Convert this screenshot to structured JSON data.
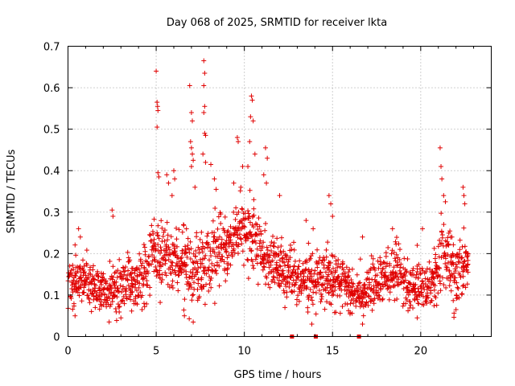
{
  "chart_data": {
    "type": "scatter",
    "title": "Day 068 of 2025, SRMTID for receiver lkta",
    "xlabel": "GPS time / hours",
    "ylabel": "SRMTID / TECUs",
    "xlim": [
      0,
      24
    ],
    "ylim": [
      0,
      0.7
    ],
    "x_ticks": [
      0,
      5,
      10,
      15,
      20
    ],
    "x_tick_labels": [
      "0",
      "5",
      "10",
      "15",
      "20"
    ],
    "y_ticks": [
      0,
      0.1,
      0.2,
      0.3,
      0.4,
      0.5,
      0.6,
      0.7
    ],
    "y_tick_labels": [
      "0",
      "0.1",
      "0.2",
      "0.3",
      "0.4",
      "0.5",
      "0.6",
      "0.7"
    ],
    "grid": true,
    "marker": "+",
    "color": "#e00000",
    "baseline_sample_hour_step": 0.05,
    "baseline_profile": [
      {
        "x": 0.0,
        "y": 0.13,
        "spread": 0.05
      },
      {
        "x": 1.0,
        "y": 0.13,
        "spread": 0.05
      },
      {
        "x": 2.0,
        "y": 0.11,
        "spread": 0.04
      },
      {
        "x": 3.0,
        "y": 0.12,
        "spread": 0.05
      },
      {
        "x": 4.0,
        "y": 0.14,
        "spread": 0.06
      },
      {
        "x": 5.0,
        "y": 0.2,
        "spread": 0.08
      },
      {
        "x": 6.0,
        "y": 0.17,
        "spread": 0.07
      },
      {
        "x": 7.0,
        "y": 0.17,
        "spread": 0.08
      },
      {
        "x": 8.0,
        "y": 0.18,
        "spread": 0.08
      },
      {
        "x": 9.0,
        "y": 0.22,
        "spread": 0.06
      },
      {
        "x": 9.7,
        "y": 0.26,
        "spread": 0.06
      },
      {
        "x": 10.5,
        "y": 0.24,
        "spread": 0.07
      },
      {
        "x": 11.5,
        "y": 0.18,
        "spread": 0.06
      },
      {
        "x": 12.5,
        "y": 0.15,
        "spread": 0.06
      },
      {
        "x": 13.5,
        "y": 0.13,
        "spread": 0.05
      },
      {
        "x": 14.5,
        "y": 0.15,
        "spread": 0.06
      },
      {
        "x": 15.5,
        "y": 0.13,
        "spread": 0.05
      },
      {
        "x": 16.5,
        "y": 0.1,
        "spread": 0.04
      },
      {
        "x": 17.5,
        "y": 0.13,
        "spread": 0.05
      },
      {
        "x": 18.5,
        "y": 0.15,
        "spread": 0.06
      },
      {
        "x": 19.5,
        "y": 0.11,
        "spread": 0.05
      },
      {
        "x": 20.5,
        "y": 0.12,
        "spread": 0.05
      },
      {
        "x": 21.2,
        "y": 0.2,
        "spread": 0.07
      },
      {
        "x": 22.0,
        "y": 0.15,
        "spread": 0.07
      },
      {
        "x": 22.7,
        "y": 0.19,
        "spread": 0.05
      }
    ],
    "highlight_points": [
      {
        "x": 5.0,
        "y": 0.64
      },
      {
        "x": 5.05,
        "y": 0.565
      },
      {
        "x": 5.08,
        "y": 0.555
      },
      {
        "x": 5.1,
        "y": 0.545
      },
      {
        "x": 5.05,
        "y": 0.505
      },
      {
        "x": 5.1,
        "y": 0.395
      },
      {
        "x": 5.15,
        "y": 0.385
      },
      {
        "x": 5.6,
        "y": 0.39
      },
      {
        "x": 5.7,
        "y": 0.37
      },
      {
        "x": 5.9,
        "y": 0.34
      },
      {
        "x": 6.9,
        "y": 0.605
      },
      {
        "x": 7.0,
        "y": 0.54
      },
      {
        "x": 7.05,
        "y": 0.52
      },
      {
        "x": 6.95,
        "y": 0.47
      },
      {
        "x": 7.0,
        "y": 0.455
      },
      {
        "x": 7.05,
        "y": 0.44
      },
      {
        "x": 7.1,
        "y": 0.425
      },
      {
        "x": 7.0,
        "y": 0.41
      },
      {
        "x": 7.2,
        "y": 0.36
      },
      {
        "x": 7.7,
        "y": 0.665
      },
      {
        "x": 7.75,
        "y": 0.635
      },
      {
        "x": 7.7,
        "y": 0.605
      },
      {
        "x": 7.75,
        "y": 0.555
      },
      {
        "x": 7.7,
        "y": 0.54
      },
      {
        "x": 7.75,
        "y": 0.49
      },
      {
        "x": 7.8,
        "y": 0.485
      },
      {
        "x": 7.65,
        "y": 0.44
      },
      {
        "x": 7.8,
        "y": 0.42
      },
      {
        "x": 8.1,
        "y": 0.415
      },
      {
        "x": 8.4,
        "y": 0.355
      },
      {
        "x": 9.6,
        "y": 0.48
      },
      {
        "x": 9.65,
        "y": 0.47
      },
      {
        "x": 9.4,
        "y": 0.37
      },
      {
        "x": 9.9,
        "y": 0.41
      },
      {
        "x": 10.4,
        "y": 0.58
      },
      {
        "x": 10.45,
        "y": 0.57
      },
      {
        "x": 10.35,
        "y": 0.53
      },
      {
        "x": 10.5,
        "y": 0.52
      },
      {
        "x": 10.3,
        "y": 0.47
      },
      {
        "x": 10.6,
        "y": 0.44
      },
      {
        "x": 10.2,
        "y": 0.41
      },
      {
        "x": 11.2,
        "y": 0.455
      },
      {
        "x": 11.3,
        "y": 0.43
      },
      {
        "x": 11.1,
        "y": 0.39
      },
      {
        "x": 11.25,
        "y": 0.37
      },
      {
        "x": 12.0,
        "y": 0.34
      },
      {
        "x": 14.8,
        "y": 0.34
      },
      {
        "x": 14.9,
        "y": 0.32
      },
      {
        "x": 15.0,
        "y": 0.29
      },
      {
        "x": 21.1,
        "y": 0.455
      },
      {
        "x": 21.15,
        "y": 0.41
      },
      {
        "x": 21.2,
        "y": 0.38
      },
      {
        "x": 21.3,
        "y": 0.34
      },
      {
        "x": 21.4,
        "y": 0.325
      },
      {
        "x": 22.4,
        "y": 0.36
      },
      {
        "x": 22.45,
        "y": 0.34
      },
      {
        "x": 22.5,
        "y": 0.32
      },
      {
        "x": 2.5,
        "y": 0.305
      },
      {
        "x": 2.55,
        "y": 0.29
      },
      {
        "x": 0.6,
        "y": 0.26
      },
      {
        "x": 0.7,
        "y": 0.24
      },
      {
        "x": 6.0,
        "y": 0.4
      },
      {
        "x": 6.05,
        "y": 0.38
      },
      {
        "x": 8.3,
        "y": 0.38
      },
      {
        "x": 9.8,
        "y": 0.36
      },
      {
        "x": 13.5,
        "y": 0.28
      },
      {
        "x": 13.9,
        "y": 0.26
      },
      {
        "x": 16.7,
        "y": 0.24
      },
      {
        "x": 18.4,
        "y": 0.26
      },
      {
        "x": 19.8,
        "y": 0.22
      },
      {
        "x": 20.1,
        "y": 0.26
      },
      {
        "x": 7.1,
        "y": 0.035
      },
      {
        "x": 16.7,
        "y": 0.03
      },
      {
        "x": 0.4,
        "y": 0.05
      },
      {
        "x": 19.8,
        "y": 0.045
      },
      {
        "x": 22.0,
        "y": 0.065
      },
      {
        "x": 3.0,
        "y": 0.045
      },
      {
        "x": 12.3,
        "y": 0.07
      },
      {
        "x": 6.6,
        "y": 0.05
      }
    ],
    "zero_points": [
      {
        "x": 12.7,
        "y": 0.0
      },
      {
        "x": 14.05,
        "y": 0.0
      },
      {
        "x": 16.5,
        "y": 0.0
      }
    ]
  }
}
